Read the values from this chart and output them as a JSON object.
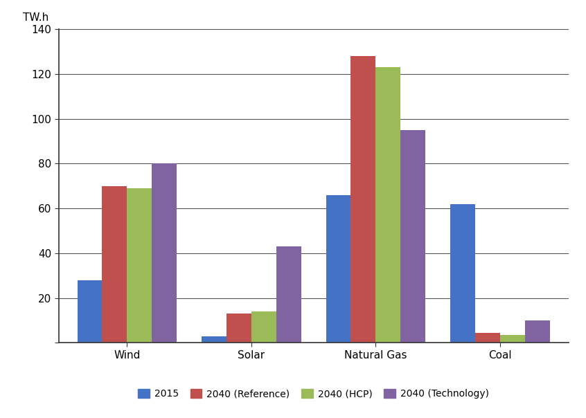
{
  "categories": [
    "Wind",
    "Solar",
    "Natural Gas",
    "Coal"
  ],
  "series": {
    "2015": [
      28,
      3,
      66,
      62
    ],
    "2040 (Reference)": [
      70,
      13,
      128,
      4.5
    ],
    "2040 (HCP)": [
      69,
      14,
      123,
      3.5
    ],
    "2040 (Technology)": [
      80,
      43,
      95,
      10
    ]
  },
  "series_order": [
    "2015",
    "2040 (Reference)",
    "2040 (HCP)",
    "2040 (Technology)"
  ],
  "colors": {
    "2015": "#4472C4",
    "2040 (Reference)": "#C0504D",
    "2040 (HCP)": "#9BBB59",
    "2040 (Technology)": "#8064A2"
  },
  "ylabel": "TW.h",
  "ylim": [
    0,
    140
  ],
  "yticks": [
    0,
    20,
    40,
    60,
    80,
    100,
    120,
    140
  ],
  "ytick_labels": [
    "",
    "20",
    "40",
    "60",
    "80",
    "100",
    "120",
    "140"
  ],
  "bar_width": 0.2,
  "background_color": "#ffffff",
  "grid_color": "#555555",
  "spine_color": "#333333"
}
